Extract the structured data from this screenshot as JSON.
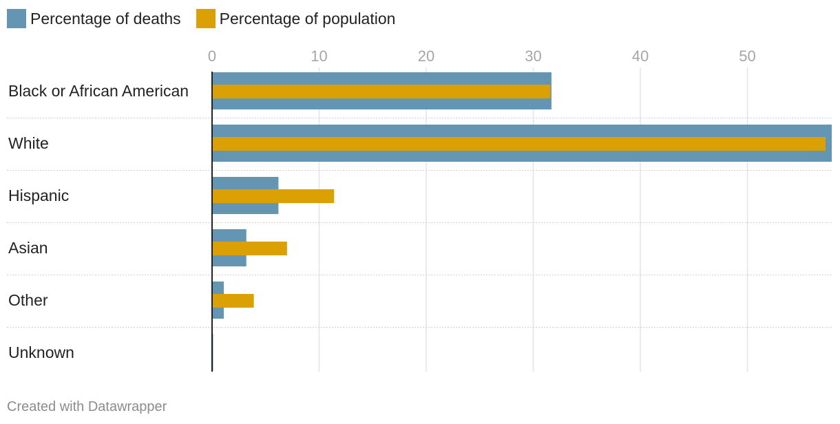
{
  "chart_data": {
    "type": "bar",
    "orientation": "horizontal",
    "categories": [
      "Black or African American",
      "White",
      "Hispanic",
      "Asian",
      "Other",
      "Unknown"
    ],
    "series": [
      {
        "name": "Percentage of deaths",
        "values": [
          31.7,
          58.0,
          6.2,
          3.2,
          1.1,
          0.1
        ],
        "color": "#6495b2"
      },
      {
        "name": "Percentage of population",
        "values": [
          31.6,
          57.3,
          11.4,
          7.0,
          3.9,
          0.0
        ],
        "color": "#daa004"
      }
    ],
    "xticks": [
      0,
      10,
      20,
      30,
      40,
      50
    ],
    "xlim": [
      0,
      58
    ],
    "grid": true,
    "legend_position": "top-left"
  },
  "footer": {
    "credit": "Created with Datawrapper"
  }
}
